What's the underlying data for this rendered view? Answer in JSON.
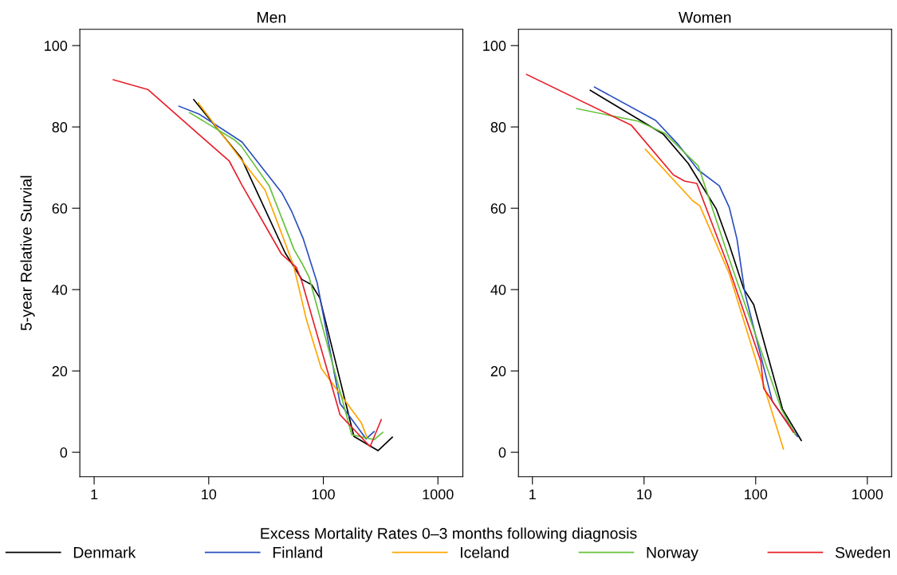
{
  "chart_data": [
    {
      "type": "line",
      "title": "Men",
      "xlabel": "Excess Mortality Rates 0–3 months following diagnosis",
      "ylabel": "5-year Relative Survial",
      "log": "x",
      "xlim": [
        0.75,
        1650
      ],
      "ylim": [
        -6,
        104
      ],
      "xticks": [
        1,
        10,
        100,
        1000
      ],
      "yticks": [
        0,
        20,
        40,
        60,
        80,
        100
      ],
      "grid": false,
      "legend": "bottom",
      "marker": "none",
      "line_style": "solid",
      "series": [
        {
          "name": "Denmark",
          "color": "#000000",
          "x": [
            7.4,
            19.2,
            46.5,
            65,
            79,
            93,
            185,
            300,
            400
          ],
          "values": [
            86.7,
            72.4,
            49,
            42.5,
            41.2,
            38,
            3.9,
            0.4,
            3.7
          ]
        },
        {
          "name": "Finland",
          "color": "#2a4fbf",
          "x": [
            5.5,
            8.3,
            19.5,
            43.7,
            53,
            67,
            88.5,
            140,
            236,
            277
          ],
          "values": [
            85.1,
            83.1,
            76.3,
            63.7,
            59.2,
            52.4,
            41.6,
            12,
            3.3,
            5.1
          ]
        },
        {
          "name": "Iceland",
          "color": "#ffa500",
          "x": [
            8.1,
            18.6,
            31,
            38,
            55,
            65,
            71,
            96,
            214,
            240
          ],
          "values": [
            85.9,
            72.5,
            64.5,
            58,
            45.9,
            37.3,
            32.7,
            20.6,
            7.3,
            3.7
          ]
        },
        {
          "name": "Norway",
          "color": "#66c23a",
          "x": [
            6.8,
            16.6,
            19.2,
            33.7,
            55.6,
            65,
            75,
            177,
            277,
            330
          ],
          "values": [
            83.5,
            76.9,
            75.3,
            65.5,
            49.8,
            46.5,
            43.1,
            4.3,
            3.1,
            4.9
          ]
        },
        {
          "name": "Sweden",
          "color": "#e8202a",
          "x": [
            1.47,
            2.94,
            15.1,
            19.5,
            43,
            58,
            65,
            140,
            256,
            320
          ],
          "values": [
            91.6,
            89.2,
            71.6,
            65.7,
            48.8,
            45.5,
            42,
            9.2,
            1.4,
            8
          ]
        }
      ]
    },
    {
      "type": "line",
      "title": "Women",
      "log": "x",
      "xlim": [
        0.75,
        1650
      ],
      "ylim": [
        -6,
        104
      ],
      "xticks": [
        1,
        10,
        100,
        1000
      ],
      "yticks": [
        0,
        20,
        40,
        60,
        80,
        100
      ],
      "grid": false,
      "legend": "bottom",
      "marker": "none",
      "line_style": "solid",
      "series": [
        {
          "color": "#000000",
          "x": [
            3.3,
            14.9,
            24.9,
            44.4,
            58,
            78,
            96,
            174,
            256
          ],
          "values": [
            89,
            78.2,
            71,
            59.8,
            51,
            40.2,
            36.3,
            10.6,
            2.9
          ]
        },
        {
          "color": "#2a4fbf",
          "x": [
            3.6,
            12.7,
            19.9,
            30.6,
            47.3,
            58,
            68,
            80,
            141,
            236
          ],
          "values": [
            89.8,
            81.6,
            75.9,
            69.4,
            65.5,
            60.2,
            52.4,
            39.2,
            12.5,
            3.9
          ]
        },
        {
          "color": "#ffa500",
          "x": [
            10.3,
            27.4,
            31.6,
            58,
            177
          ],
          "values": [
            74.5,
            61.8,
            60.6,
            43.9,
            0.8
          ]
        },
        {
          "color": "#66c23a",
          "x": [
            2.5,
            8.9,
            15.4,
            30.6,
            56.5,
            170,
            227
          ],
          "values": [
            84.5,
            81.4,
            78.4,
            70.4,
            48.4,
            10.6,
            4.3
          ]
        },
        {
          "color": "#e8202a",
          "x": [
            0.89,
            7.7,
            18.3,
            23,
            29.7,
            56.5,
            111,
            118,
            218
          ],
          "values": [
            92.9,
            80.4,
            68.2,
            66.7,
            66.1,
            45.9,
            22.4,
            15.7,
            4.9
          ]
        }
      ]
    }
  ]
}
